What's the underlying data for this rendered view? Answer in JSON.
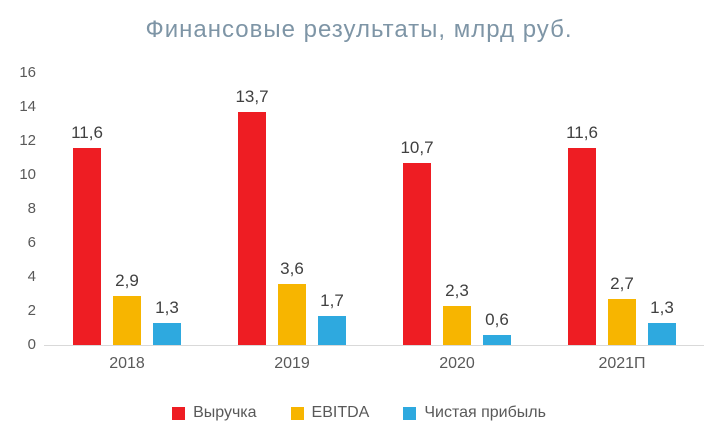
{
  "chart_data": {
    "type": "bar",
    "title": "Финансовые результаты, млрд руб.",
    "categories": [
      "2018",
      "2019",
      "2020",
      "2021П"
    ],
    "series": [
      {
        "id": "revenue",
        "name": "Выручка",
        "color": "#EE1D23",
        "values": [
          11.6,
          13.7,
          10.7,
          11.6
        ],
        "labels": [
          "11,6",
          "13,7",
          "10,7",
          "11,6"
        ]
      },
      {
        "id": "ebitda",
        "name": "EBITDA",
        "color": "#F7B500",
        "values": [
          2.9,
          3.6,
          2.3,
          2.7
        ],
        "labels": [
          "2,9",
          "3,6",
          "2,3",
          "2,7"
        ]
      },
      {
        "id": "net-profit",
        "name": "Чистая прибыль",
        "color": "#2EA9DF",
        "values": [
          1.3,
          1.7,
          0.6,
          1.3
        ],
        "labels": [
          "1,3",
          "1,7",
          "0,6",
          "1,3"
        ]
      }
    ],
    "ylim": [
      0,
      16
    ],
    "yticks": [
      0,
      2,
      4,
      6,
      8,
      10,
      12,
      14,
      16
    ],
    "grid": false,
    "legend_position": "bottom"
  },
  "colors": {
    "title": "#7E95A6",
    "axis_text": "#595959",
    "label_text": "#404040",
    "axis_line": "#D9D9D9"
  }
}
